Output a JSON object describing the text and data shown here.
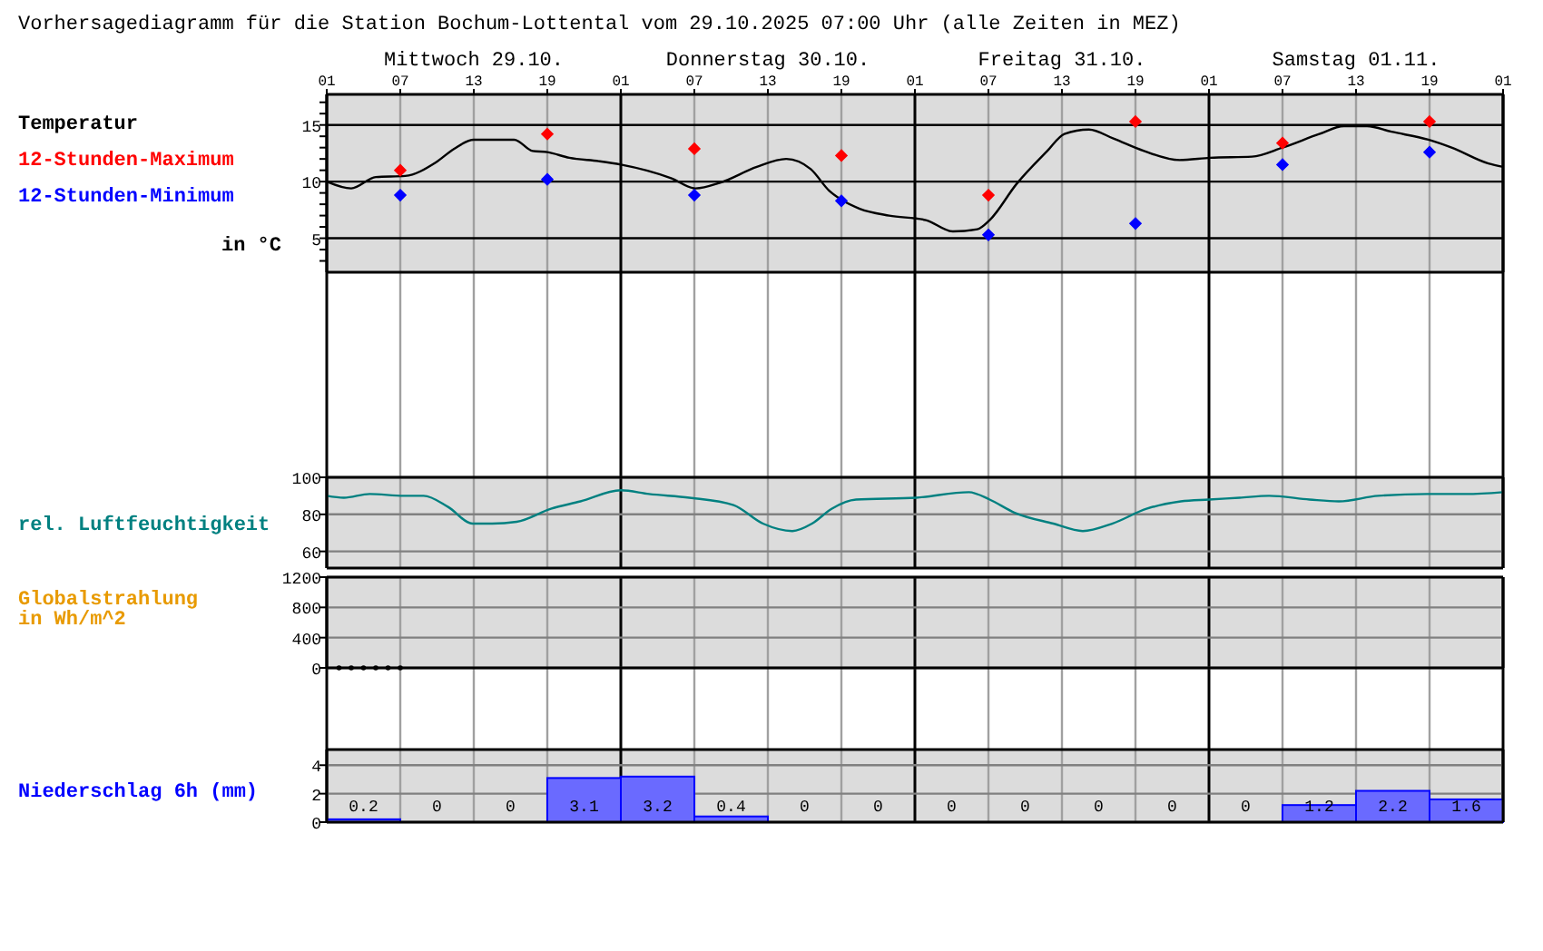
{
  "chart_data": [
    {
      "type": "line",
      "title": "Vorhersagediagramm für die Station Bochum-Lottental vom 29.10.2025 07:00 Uhr (alle Zeiten in MEZ)",
      "ylabel": "in °C",
      "annotations": [
        "Mittwoch 29.10.",
        "Donnerstag 30.10.",
        "Freitag 31.10.",
        "Samstag 01.11."
      ],
      "xlim": [
        "2025-10-29T01:00",
        "2025-11-02T01:00"
      ],
      "xticks": [
        {
          "value": "2025-10-29T01:00",
          "label": "01"
        },
        {
          "value": "2025-10-29T07:00",
          "label": "07"
        },
        {
          "value": "2025-10-29T13:00",
          "label": "13"
        },
        {
          "value": "2025-10-29T19:00",
          "label": "19"
        },
        {
          "value": "2025-10-30T01:00",
          "label": "01"
        },
        {
          "value": "2025-10-30T07:00",
          "label": "07"
        },
        {
          "value": "2025-10-30T13:00",
          "label": "13"
        },
        {
          "value": "2025-10-30T19:00",
          "label": "19"
        },
        {
          "value": "2025-10-31T01:00",
          "label": "01"
        },
        {
          "value": "2025-10-31T07:00",
          "label": "07"
        },
        {
          "value": "2025-10-31T13:00",
          "label": "13"
        },
        {
          "value": "2025-10-31T19:00",
          "label": "19"
        },
        {
          "value": "2025-11-01T01:00",
          "label": "01"
        },
        {
          "value": "2025-11-01T07:00",
          "label": "07"
        },
        {
          "value": "2025-11-01T13:00",
          "label": "13"
        },
        {
          "value": "2025-11-01T19:00",
          "label": "19"
        },
        {
          "value": "2025-11-02T01:00",
          "label": "01"
        }
      ],
      "ylim": [
        2,
        17.7
      ],
      "yticks": [
        {
          "value": 3,
          "label": null
        },
        {
          "value": 4,
          "label": null
        },
        5,
        {
          "value": 6,
          "label": null
        },
        {
          "value": 7,
          "label": null
        },
        {
          "value": 8,
          "label": null
        },
        {
          "value": 9,
          "label": null
        },
        10,
        {
          "value": 11,
          "label": null
        },
        {
          "value": 12,
          "label": null
        },
        {
          "value": 13,
          "label": null
        },
        {
          "value": 14,
          "label": null
        },
        15,
        {
          "value": 16,
          "label": null
        },
        {
          "value": 17,
          "label": null
        }
      ],
      "grid": true,
      "legend": "left",
      "series": [
        {
          "name": "Temperatur",
          "color": "#000000",
          "marker": "none",
          "x": [
            "2025-10-29T01:00",
            "2025-10-29T03:00",
            "2025-10-29T05:00",
            "2025-10-29T07:24",
            "2025-10-29T09:54",
            "2025-10-29T11:24",
            "2025-10-29T13:00",
            "2025-10-29T16:18",
            "2025-10-29T17:48",
            "2025-10-29T19:00",
            "2025-10-29T20:48",
            "2025-10-29T23:12",
            "2025-10-30T01:00",
            "2025-10-30T05:06",
            "2025-10-30T07:06",
            "2025-10-30T09:06",
            "2025-10-30T12:06",
            "2025-10-30T14:30",
            "2025-10-30T16:30",
            "2025-10-30T18:00",
            "2025-10-30T19:00",
            "2025-10-30T20:30",
            "2025-10-30T22:54",
            "2025-10-31T01:54",
            "2025-10-31T04:06",
            "2025-10-31T06:06",
            "2025-10-31T07:06",
            "2025-10-31T09:18",
            "2025-10-31T11:48",
            "2025-10-31T13:12",
            "2025-10-31T15:12",
            "2025-10-31T17:12",
            "2025-10-31T19:42",
            "2025-10-31T22:36",
            "2025-11-01T01:06",
            "2025-11-01T04:30",
            "2025-11-01T07:00",
            "2025-11-01T10:00",
            "2025-11-01T12:00",
            "2025-11-01T13:54",
            "2025-11-01T15:54",
            "2025-11-01T18:54",
            "2025-11-01T20:48",
            "2025-11-01T23:48",
            "2025-11-02T01:00"
          ],
          "values": [
            10.0,
            9.4,
            10.4,
            10.5,
            11.7,
            12.9,
            13.7,
            13.7,
            12.7,
            12.6,
            12.1,
            11.8,
            11.5,
            10.3,
            9.4,
            9.9,
            11.3,
            12.0,
            11.1,
            9.2,
            8.4,
            7.6,
            7.0,
            6.6,
            5.6,
            5.8,
            6.6,
            9.8,
            12.7,
            14.2,
            14.6,
            13.8,
            12.7,
            11.9,
            12.1,
            12.2,
            13.0,
            14.2,
            14.9,
            14.9,
            14.4,
            13.7,
            13.0,
            11.6,
            11.3
          ]
        },
        {
          "name": "12-Stunden-Maximum",
          "type": "scatter",
          "marker": "diamond",
          "color": "#ff0000",
          "x": [
            "2025-10-29T07:00",
            "2025-10-29T19:00",
            "2025-10-30T07:00",
            "2025-10-30T19:00",
            "2025-10-31T07:00",
            "2025-10-31T19:00",
            "2025-11-01T07:00",
            "2025-11-01T19:00"
          ],
          "values": [
            11.0,
            14.2,
            12.9,
            12.3,
            8.8,
            15.3,
            13.4,
            15.3
          ]
        },
        {
          "name": "12-Stunden-Minimum",
          "type": "scatter",
          "marker": "diamond",
          "color": "#0000ff",
          "x": [
            "2025-10-29T07:00",
            "2025-10-29T19:00",
            "2025-10-30T07:00",
            "2025-10-30T19:00",
            "2025-10-31T07:00",
            "2025-10-31T19:00",
            "2025-11-01T07:00",
            "2025-11-01T19:00"
          ],
          "values": [
            8.8,
            10.2,
            8.8,
            8.3,
            5.3,
            6.3,
            11.5,
            12.6
          ]
        }
      ]
    },
    {
      "type": "line",
      "ylabel": "rel. Luftfeuchtigkeit",
      "xlim": [
        "2025-10-29T01:00",
        "2025-11-02T01:00"
      ],
      "xticks": [
        "2025-10-29T01:00",
        "2025-10-29T07:00",
        "2025-10-29T13:00",
        "2025-10-29T19:00",
        "2025-10-30T01:00",
        "2025-10-30T07:00",
        "2025-10-30T13:00",
        "2025-10-30T19:00",
        "2025-10-31T01:00",
        "2025-10-31T07:00",
        "2025-10-31T13:00",
        "2025-10-31T19:00",
        "2025-11-01T01:00",
        "2025-11-01T07:00",
        "2025-11-01T13:00",
        "2025-11-01T19:00",
        "2025-11-02T01:00"
      ],
      "tick_labels": "y",
      "ylim": [
        51,
        100
      ],
      "yticks": [
        60,
        80,
        100
      ],
      "grid": true,
      "series": [
        {
          "color": "#008080",
          "x": [
            "2025-10-29T01:00",
            "2025-10-29T02:24",
            "2025-10-29T04:30",
            "2025-10-29T07:18",
            "2025-10-29T08:54",
            "2025-10-29T10:54",
            "2025-10-29T12:54",
            "2025-10-29T14:30",
            "2025-10-29T16:30",
            "2025-10-29T19:18",
            "2025-10-29T21:42",
            "2025-10-30T01:00",
            "2025-10-30T03:18",
            "2025-10-30T06:36",
            "2025-10-30T10:12",
            "2025-10-30T12:36",
            "2025-10-30T15:00",
            "2025-10-30T16:36",
            "2025-10-30T18:12",
            "2025-10-30T20:12",
            "2025-10-31T01:06",
            "2025-10-31T05:24",
            "2025-10-31T07:06",
            "2025-10-31T09:06",
            "2025-10-31T12:18",
            "2025-10-31T14:42",
            "2025-10-31T17:06",
            "2025-10-31T19:54",
            "2025-10-31T22:42",
            "2025-11-01T01:00",
            "2025-11-01T03:30",
            "2025-11-01T05:54",
            "2025-11-01T09:12",
            "2025-11-01T11:36",
            "2025-11-01T14:48",
            "2025-11-01T18:48",
            "2025-11-01T22:00",
            "2025-11-02T01:00"
          ],
          "values": [
            90,
            89,
            91,
            90,
            90,
            84,
            75,
            75,
            76,
            83,
            87,
            93,
            91,
            89,
            85,
            75,
            71,
            75,
            83,
            88,
            89,
            92,
            88,
            81,
            75,
            71,
            75,
            83,
            87,
            88,
            89,
            90,
            88,
            87,
            90,
            91,
            91,
            92
          ]
        }
      ]
    },
    {
      "type": "scatter",
      "ylabel": "Globalstrahlung in Wh/m^2",
      "xlim": [
        "2025-10-29T01:00",
        "2025-11-02T01:00"
      ],
      "xticks": [
        "2025-10-29T01:00",
        "2025-10-29T07:00",
        "2025-10-29T13:00",
        "2025-10-29T19:00",
        "2025-10-30T01:00",
        "2025-10-30T07:00",
        "2025-10-30T13:00",
        "2025-10-30T19:00",
        "2025-10-31T01:00",
        "2025-10-31T07:00",
        "2025-10-31T13:00",
        "2025-10-31T19:00",
        "2025-11-01T01:00",
        "2025-11-01T07:00",
        "2025-11-01T13:00",
        "2025-11-01T19:00",
        "2025-11-02T01:00"
      ],
      "tick_labels": "y",
      "ylim": [
        0,
        1200
      ],
      "yticks": [
        0,
        400,
        800,
        1200
      ],
      "grid": true,
      "marker": "circle",
      "series": [
        {
          "color": "#000000",
          "x": [
            "2025-10-29T02:00",
            "2025-10-29T03:00",
            "2025-10-29T04:00",
            "2025-10-29T05:00",
            "2025-10-29T06:00",
            "2025-10-29T07:00"
          ],
          "values": [
            0,
            0,
            0,
            0,
            0,
            0
          ]
        }
      ]
    },
    {
      "type": "bar",
      "ylabel": "Niederschlag 6h (mm)",
      "xlim": [
        "2025-10-29T01:00",
        "2025-11-02T01:00"
      ],
      "xticks": [
        "2025-10-29T01:00",
        "2025-10-29T07:00",
        "2025-10-29T13:00",
        "2025-10-29T19:00",
        "2025-10-30T01:00",
        "2025-10-30T07:00",
        "2025-10-30T13:00",
        "2025-10-30T19:00",
        "2025-10-31T01:00",
        "2025-10-31T07:00",
        "2025-10-31T13:00",
        "2025-10-31T19:00",
        "2025-11-01T01:00",
        "2025-11-01T07:00",
        "2025-11-01T13:00",
        "2025-11-01T19:00",
        "2025-11-02T01:00"
      ],
      "tick_labels": "y",
      "ylim": [
        0,
        5.1
      ],
      "yticks": [
        0,
        2,
        4
      ],
      "grid": true,
      "data_labels": true,
      "series": [
        {
          "color": "#6a6aff",
          "x": [
            "2025-10-29T04:00",
            "2025-10-29T10:00",
            "2025-10-29T16:00",
            "2025-10-29T22:00",
            "2025-10-30T04:00",
            "2025-10-30T10:00",
            "2025-10-30T16:00",
            "2025-10-30T22:00",
            "2025-10-31T04:00",
            "2025-10-31T10:00",
            "2025-10-31T16:00",
            "2025-10-31T22:00",
            "2025-11-01T04:00",
            "2025-11-01T10:00",
            "2025-11-01T16:00",
            "2025-11-01T22:00"
          ],
          "values": [
            0.2,
            0,
            0,
            3.1,
            3.2,
            0.4,
            0,
            0,
            0,
            0,
            0,
            0,
            0,
            1.2,
            2.2,
            1.6
          ]
        }
      ]
    }
  ]
}
